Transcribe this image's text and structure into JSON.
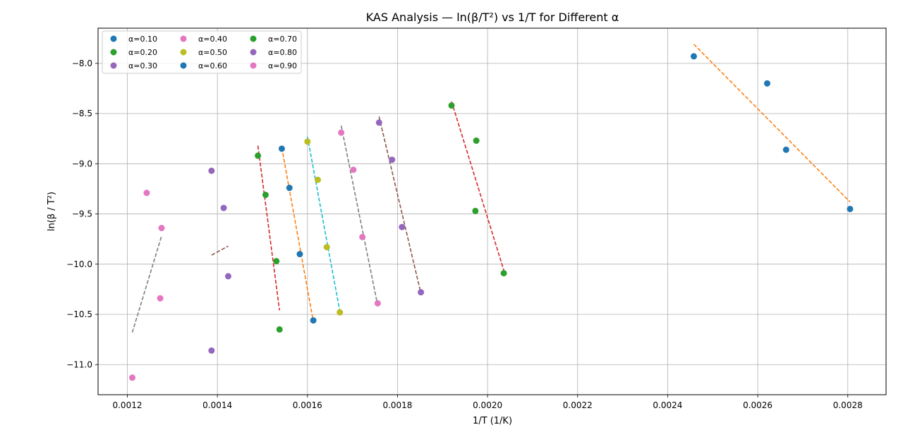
{
  "chart_data": {
    "type": "scatter",
    "title": "KAS Analysis — ln(β/T²) vs 1/T for Different α",
    "xlabel": "1/T (1/K)",
    "ylabel": "ln(β / T²)",
    "xlim": [
      0.001135,
      0.002885
    ],
    "ylim": [
      -11.3,
      -7.65
    ],
    "x_ticks": [
      0.0012,
      0.0014,
      0.0016,
      0.0018,
      0.002,
      0.0022,
      0.0024,
      0.0026,
      0.0028
    ],
    "x_tick_labels": [
      "0.0012",
      "0.0014",
      "0.0016",
      "0.0018",
      "0.0020",
      "0.0022",
      "0.0024",
      "0.0026",
      "0.0028"
    ],
    "y_ticks": [
      -11.0,
      -10.5,
      -10.0,
      -9.5,
      -9.0,
      -8.5,
      -8.0
    ],
    "y_tick_labels": [
      "−11.0",
      "−10.5",
      "−10.0",
      "−9.5",
      "−9.0",
      "−8.5",
      "−8.0"
    ],
    "grid": true,
    "legend_position": "top-left",
    "legend_columns": 3,
    "series": [
      {
        "name": "α=0.10",
        "color": "#1f77b4",
        "line_color": "#ff7f0e",
        "points": [
          [
            0.002458,
            -7.93
          ],
          [
            0.002621,
            -8.2
          ],
          [
            0.002663,
            -8.86
          ],
          [
            0.002805,
            -9.45
          ]
        ],
        "fit": [
          [
            0.002458,
            -7.81
          ],
          [
            0.002805,
            -9.38
          ]
        ]
      },
      {
        "name": "α=0.20",
        "color": "#2ca02c",
        "line_color": "#d62728",
        "points": [
          [
            0.00192,
            -8.42
          ],
          [
            0.001975,
            -8.77
          ],
          [
            0.001973,
            -9.47
          ],
          [
            0.002036,
            -10.09
          ]
        ],
        "fit": [
          [
            0.00192,
            -8.38
          ],
          [
            0.002036,
            -10.06
          ]
        ]
      },
      {
        "name": "α=0.30",
        "color": "#9467bd",
        "line_color": "#8c564b",
        "points": [
          [
            0.001387,
            -9.07
          ],
          [
            0.001414,
            -9.44
          ],
          [
            0.001424,
            -10.12
          ],
          [
            0.001387,
            -10.86
          ]
        ],
        "fit": [
          [
            0.001387,
            -9.91
          ],
          [
            0.001424,
            -9.82
          ]
        ]
      },
      {
        "name": "α=0.40",
        "color": "#e377c2",
        "line_color": "#7f7f7f",
        "points": [
          [
            0.001243,
            -9.29
          ],
          [
            0.001276,
            -9.64
          ],
          [
            0.001273,
            -10.34
          ],
          [
            0.001211,
            -11.13
          ]
        ],
        "fit": [
          [
            0.001211,
            -10.68
          ],
          [
            0.001276,
            -9.72
          ]
        ]
      },
      {
        "name": "α=0.50",
        "color": "#bcbd22",
        "line_color": "#17becf",
        "points": [
          [
            0.0016,
            -8.78
          ],
          [
            0.001623,
            -9.16
          ],
          [
            0.001643,
            -9.83
          ],
          [
            0.001672,
            -10.48
          ]
        ],
        "fit": [
          [
            0.0016,
            -8.73
          ],
          [
            0.001672,
            -10.47
          ]
        ]
      },
      {
        "name": "α=0.60",
        "color": "#1f77b4",
        "line_color": "#ff7f0e",
        "points": [
          [
            0.001543,
            -8.85
          ],
          [
            0.00156,
            -9.24
          ],
          [
            0.001583,
            -9.9
          ],
          [
            0.001613,
            -10.56
          ]
        ],
        "fit": [
          [
            0.001543,
            -8.84
          ],
          [
            0.001613,
            -10.57
          ]
        ]
      },
      {
        "name": "α=0.70",
        "color": "#2ca02c",
        "line_color": "#d62728",
        "points": [
          [
            0.00149,
            -8.92
          ],
          [
            0.001507,
            -9.31
          ],
          [
            0.001531,
            -9.97
          ],
          [
            0.001538,
            -10.65
          ]
        ],
        "fit": [
          [
            0.00149,
            -8.82
          ],
          [
            0.001538,
            -10.46
          ]
        ]
      },
      {
        "name": "α=0.80",
        "color": "#9467bd",
        "line_color": "#8c564b",
        "points": [
          [
            0.001759,
            -8.59
          ],
          [
            0.001788,
            -8.96
          ],
          [
            0.00181,
            -9.63
          ],
          [
            0.001852,
            -10.28
          ]
        ],
        "fit": [
          [
            0.001759,
            -8.53
          ],
          [
            0.001852,
            -10.29
          ]
        ]
      },
      {
        "name": "α=0.90",
        "color": "#e377c2",
        "line_color": "#7f7f7f",
        "points": [
          [
            0.001675,
            -8.69
          ],
          [
            0.001702,
            -9.06
          ],
          [
            0.001722,
            -9.73
          ],
          [
            0.001756,
            -10.39
          ]
        ],
        "fit": [
          [
            0.001675,
            -8.62
          ],
          [
            0.001756,
            -10.41
          ]
        ]
      }
    ]
  }
}
